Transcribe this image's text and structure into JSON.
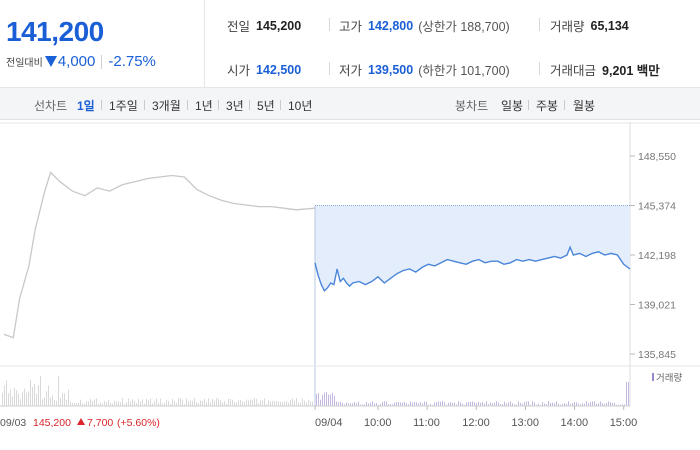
{
  "quote": {
    "price": "141,200",
    "change_label": "전일대비",
    "change_value": "4,000",
    "change_pct": "-2.75%",
    "direction_color": "#1a5fd6"
  },
  "stats": {
    "prev_close_label": "전일",
    "prev_close": "145,200",
    "high_label": "고가",
    "high": "142,800",
    "upper_limit": "(상한가 188,700)",
    "volume_label": "거래량",
    "volume": "65,134",
    "open_label": "시가",
    "open": "142,500",
    "low_label": "저가",
    "low": "139,500",
    "lower_limit": "(하한가 101,700)",
    "amount_label": "거래대금",
    "amount": "9,201 백만"
  },
  "toolbar": {
    "line_chart_label": "선차트",
    "periods": [
      "1일",
      "1주일",
      "3개월",
      "1년",
      "3년",
      "5년",
      "10년"
    ],
    "active_period": "1일",
    "candle_chart_label": "봉차트",
    "candle_periods": [
      "일봉",
      "주봉",
      "월봉"
    ]
  },
  "chart_data": {
    "type": "line",
    "y_ticks": [
      "148,550",
      "145,374",
      "142,198",
      "139,021",
      "135,845"
    ],
    "ylim": [
      135845,
      148550
    ],
    "x_ticks": [
      "09/04",
      "10:00",
      "11:00",
      "12:00",
      "13:00",
      "14:00",
      "15:00"
    ],
    "prev_close_reference": 145374,
    "colors": {
      "today": "#4a86d9",
      "prev_day": "#c8c8c8",
      "fill": "#e3edfb",
      "volume_today": "#c4b8e0",
      "volume_prev": "#d9d9d9"
    },
    "prev_day_series": {
      "date": "09/03",
      "close": "145,200",
      "change": "7,700",
      "change_pct": "(+5.60%)",
      "points": [
        {
          "t": 0.0,
          "v": 137100
        },
        {
          "t": 0.03,
          "v": 136900
        },
        {
          "t": 0.05,
          "v": 139400
        },
        {
          "t": 0.08,
          "v": 141500
        },
        {
          "t": 0.1,
          "v": 143800
        },
        {
          "t": 0.13,
          "v": 146200
        },
        {
          "t": 0.15,
          "v": 147500
        },
        {
          "t": 0.18,
          "v": 146900
        },
        {
          "t": 0.22,
          "v": 146300
        },
        {
          "t": 0.26,
          "v": 146000
        },
        {
          "t": 0.3,
          "v": 146500
        },
        {
          "t": 0.34,
          "v": 146300
        },
        {
          "t": 0.38,
          "v": 146700
        },
        {
          "t": 0.42,
          "v": 146900
        },
        {
          "t": 0.46,
          "v": 147100
        },
        {
          "t": 0.5,
          "v": 147200
        },
        {
          "t": 0.54,
          "v": 147300
        },
        {
          "t": 0.58,
          "v": 147200
        },
        {
          "t": 0.62,
          "v": 146400
        },
        {
          "t": 0.66,
          "v": 146000
        },
        {
          "t": 0.7,
          "v": 145700
        },
        {
          "t": 0.74,
          "v": 145500
        },
        {
          "t": 0.78,
          "v": 145400
        },
        {
          "t": 0.82,
          "v": 145300
        },
        {
          "t": 0.86,
          "v": 145300
        },
        {
          "t": 0.9,
          "v": 145200
        },
        {
          "t": 0.94,
          "v": 145100
        },
        {
          "t": 1.0,
          "v": 145200
        }
      ]
    },
    "today_series": {
      "date": "09/04",
      "points": [
        {
          "t": 0.0,
          "v": 141700
        },
        {
          "t": 0.01,
          "v": 140900
        },
        {
          "t": 0.02,
          "v": 140300
        },
        {
          "t": 0.03,
          "v": 139900
        },
        {
          "t": 0.04,
          "v": 140100
        },
        {
          "t": 0.05,
          "v": 140400
        },
        {
          "t": 0.06,
          "v": 140300
        },
        {
          "t": 0.07,
          "v": 141300
        },
        {
          "t": 0.08,
          "v": 140500
        },
        {
          "t": 0.09,
          "v": 140700
        },
        {
          "t": 0.1,
          "v": 140400
        },
        {
          "t": 0.11,
          "v": 140200
        },
        {
          "t": 0.12,
          "v": 140400
        },
        {
          "t": 0.14,
          "v": 140500
        },
        {
          "t": 0.16,
          "v": 140300
        },
        {
          "t": 0.18,
          "v": 140500
        },
        {
          "t": 0.2,
          "v": 140800
        },
        {
          "t": 0.22,
          "v": 140400
        },
        {
          "t": 0.24,
          "v": 140700
        },
        {
          "t": 0.26,
          "v": 141000
        },
        {
          "t": 0.28,
          "v": 141200
        },
        {
          "t": 0.3,
          "v": 141300
        },
        {
          "t": 0.32,
          "v": 141100
        },
        {
          "t": 0.34,
          "v": 141400
        },
        {
          "t": 0.36,
          "v": 141600
        },
        {
          "t": 0.38,
          "v": 141500
        },
        {
          "t": 0.4,
          "v": 141700
        },
        {
          "t": 0.42,
          "v": 141900
        },
        {
          "t": 0.44,
          "v": 141800
        },
        {
          "t": 0.46,
          "v": 141700
        },
        {
          "t": 0.48,
          "v": 141600
        },
        {
          "t": 0.5,
          "v": 141800
        },
        {
          "t": 0.52,
          "v": 141900
        },
        {
          "t": 0.54,
          "v": 141700
        },
        {
          "t": 0.56,
          "v": 141800
        },
        {
          "t": 0.58,
          "v": 141800
        },
        {
          "t": 0.6,
          "v": 141600
        },
        {
          "t": 0.62,
          "v": 141700
        },
        {
          "t": 0.64,
          "v": 141900
        },
        {
          "t": 0.66,
          "v": 141800
        },
        {
          "t": 0.68,
          "v": 141900
        },
        {
          "t": 0.7,
          "v": 141800
        },
        {
          "t": 0.72,
          "v": 141900
        },
        {
          "t": 0.74,
          "v": 142000
        },
        {
          "t": 0.76,
          "v": 142100
        },
        {
          "t": 0.78,
          "v": 142000
        },
        {
          "t": 0.8,
          "v": 142200
        },
        {
          "t": 0.81,
          "v": 142700
        },
        {
          "t": 0.82,
          "v": 142200
        },
        {
          "t": 0.84,
          "v": 142300
        },
        {
          "t": 0.86,
          "v": 142100
        },
        {
          "t": 0.88,
          "v": 142300
        },
        {
          "t": 0.9,
          "v": 142400
        },
        {
          "t": 0.92,
          "v": 142200
        },
        {
          "t": 0.94,
          "v": 142300
        },
        {
          "t": 0.96,
          "v": 142200
        },
        {
          "t": 0.98,
          "v": 141600
        },
        {
          "t": 1.0,
          "v": 141300
        }
      ]
    },
    "volume_legend": "거래량"
  }
}
